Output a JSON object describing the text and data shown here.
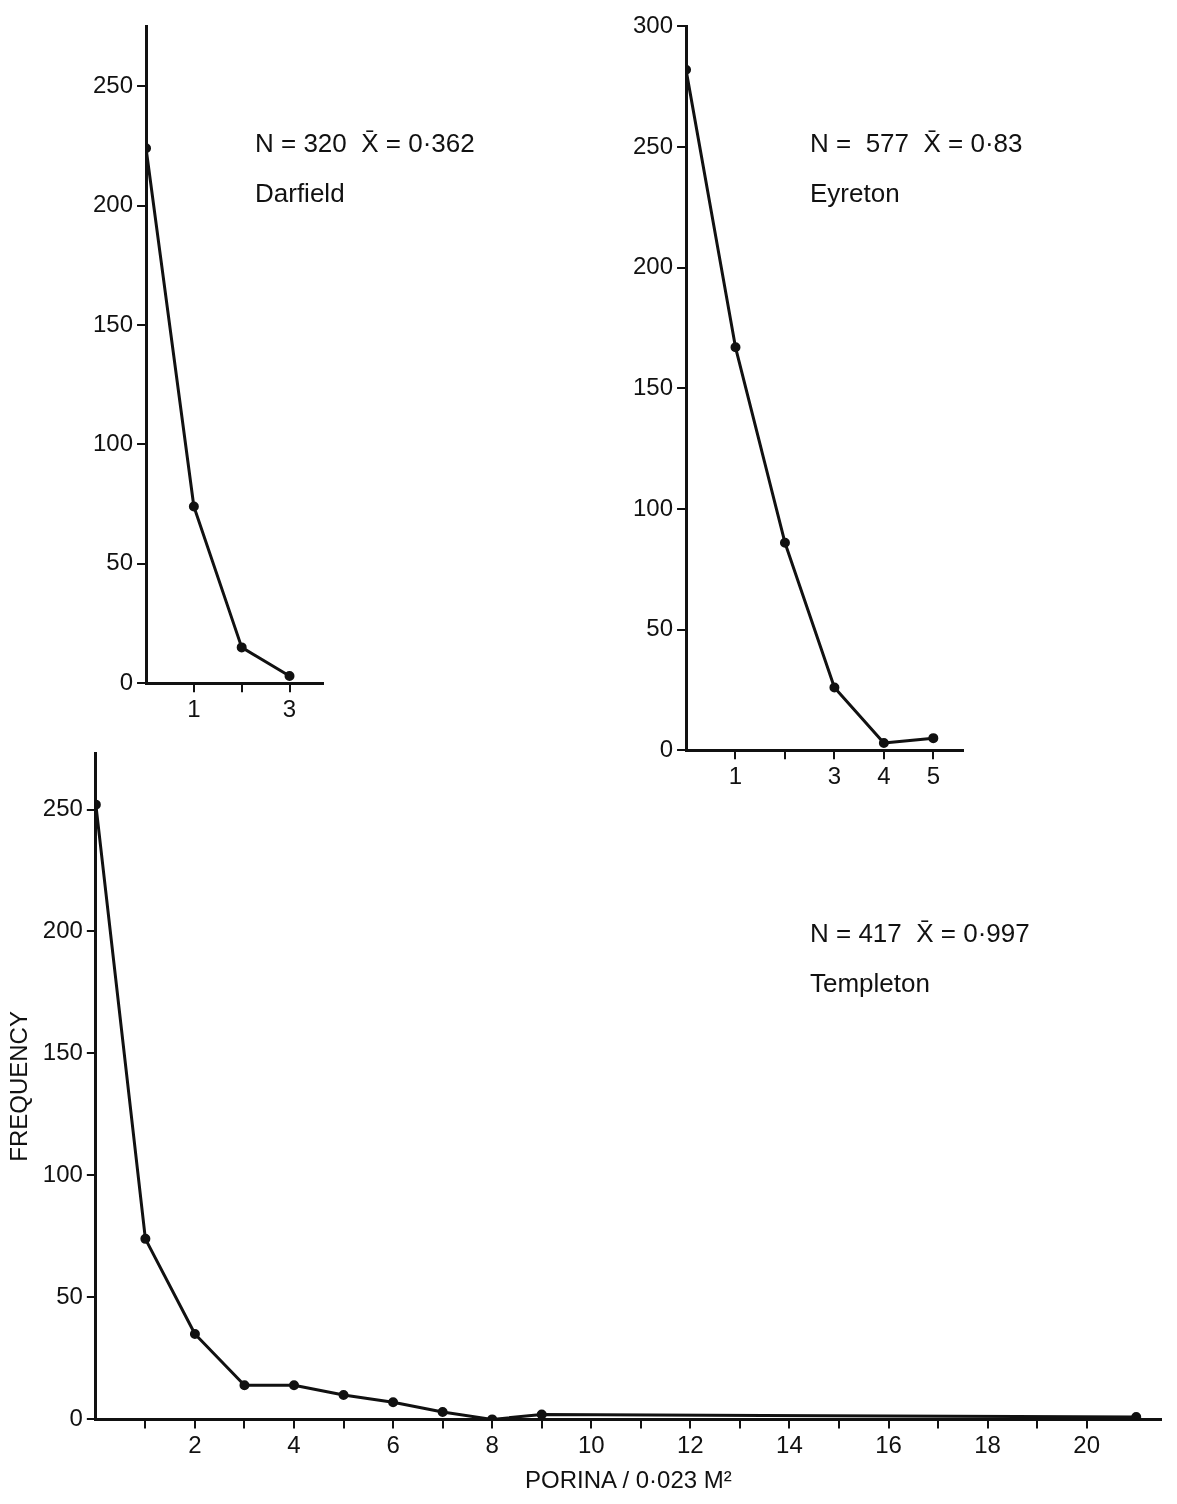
{
  "chart_data": [
    {
      "type": "line",
      "x": [
        0,
        1,
        2,
        3
      ],
      "values": [
        224,
        74,
        15,
        3
      ],
      "color": "#111111",
      "marker": "circle",
      "line_style": "solid",
      "xlim": [
        0,
        3.7
      ],
      "ylim": [
        0,
        275
      ],
      "xticks": [
        1,
        {
          "value": 2,
          "label": null
        },
        3
      ],
      "yticks": [
        0,
        50,
        100,
        150,
        200,
        250
      ],
      "annotations": [
        "N = 320  X̄ = 0·362",
        "Darfield"
      ]
    },
    {
      "type": "line",
      "x": [
        0,
        1,
        2,
        3,
        4,
        5
      ],
      "values": [
        282,
        167,
        86,
        26,
        3,
        5
      ],
      "color": "#111111",
      "marker": "circle",
      "line_style": "solid",
      "xlim": [
        0,
        5.6
      ],
      "ylim": [
        0,
        300
      ],
      "xticks": [
        1,
        {
          "value": 2,
          "label": null
        },
        3,
        4,
        5
      ],
      "yticks": [
        0,
        50,
        100,
        150,
        200,
        250,
        300
      ],
      "annotations": [
        "N =  577  X̄ = 0·83",
        "Eyreton"
      ]
    },
    {
      "type": "line",
      "x": [
        0,
        1,
        2,
        3,
        4,
        5,
        6,
        7,
        8,
        9,
        21
      ],
      "values": [
        252,
        74,
        35,
        14,
        14,
        10,
        7,
        3,
        0,
        2,
        1
      ],
      "color": "#111111",
      "marker": "circle",
      "line_style": "solid",
      "xlim": [
        0,
        21.5
      ],
      "ylim": [
        0,
        273
      ],
      "xticks": [
        {
          "value": 1,
          "label": null
        },
        2,
        {
          "value": 3,
          "label": null
        },
        4,
        {
          "value": 5,
          "label": null
        },
        6,
        {
          "value": 7,
          "label": null
        },
        8,
        {
          "value": 9,
          "label": null
        },
        10,
        {
          "value": 11,
          "label": null
        },
        12,
        {
          "value": 13,
          "label": null
        },
        14,
        {
          "value": 15,
          "label": null
        },
        16,
        {
          "value": 17,
          "label": null
        },
        18,
        {
          "value": 19,
          "label": null
        },
        20
      ],
      "yticks": [
        0,
        50,
        100,
        150,
        200,
        250
      ],
      "xlabel": "PORINA / 0·023 M²",
      "ylabel": "FREQUENCY",
      "annotations": [
        "N = 417  X̄ = 0·997",
        "Templeton"
      ]
    }
  ]
}
